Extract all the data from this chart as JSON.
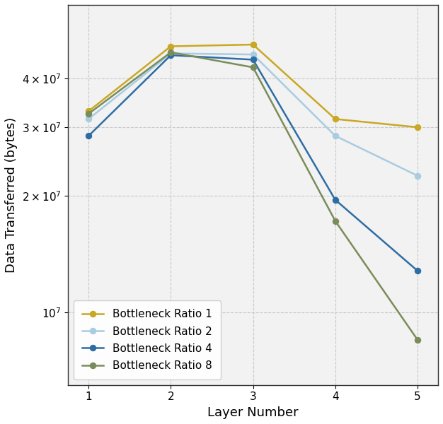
{
  "series": [
    {
      "label": "Bottleneck Ratio 1",
      "color": "#c8a824",
      "values": [
        33000000.0,
        48500000.0,
        49000000.0,
        31500000.0,
        30000000.0
      ]
    },
    {
      "label": "Bottleneck Ratio 2",
      "color": "#a8cce0",
      "values": [
        31500000.0,
        46500000.0,
        46200000.0,
        28500000.0,
        22500000.0
      ]
    },
    {
      "label": "Bottleneck Ratio 4",
      "color": "#2e6da4",
      "values": [
        28500000.0,
        46000000.0,
        44800000.0,
        19500000.0,
        12800000.0
      ]
    },
    {
      "label": "Bottleneck Ratio 8",
      "color": "#7a8c5a",
      "values": [
        32500000.0,
        46800000.0,
        42800000.0,
        17200000.0,
        8500000.0
      ]
    }
  ],
  "x_values": [
    1,
    2,
    3,
    4,
    5
  ],
  "xlabel": "Layer Number",
  "ylabel": "Data Transferred (bytes)",
  "ylim": [
    6500000.0,
    62000000.0
  ],
  "xlim": [
    0.75,
    5.25
  ],
  "plot_bg_color": "#f2f2f2",
  "fig_bg_color": "#ffffff",
  "grid_color": "#c8c8c8",
  "marker": "o",
  "markersize": 6,
  "markeredgewidth": 0.8,
  "linewidth": 1.8,
  "yticks": [
    10000000.0,
    20000000.0,
    30000000.0,
    40000000.0
  ],
  "ytick_labels": [
    "$10^7$",
    "$2 \\times 10^7$",
    "$3 \\times 10^7$",
    "$4 \\times 10^7$"
  ],
  "xlabel_fontsize": 13,
  "ylabel_fontsize": 13,
  "tick_fontsize": 11,
  "legend_fontsize": 11
}
